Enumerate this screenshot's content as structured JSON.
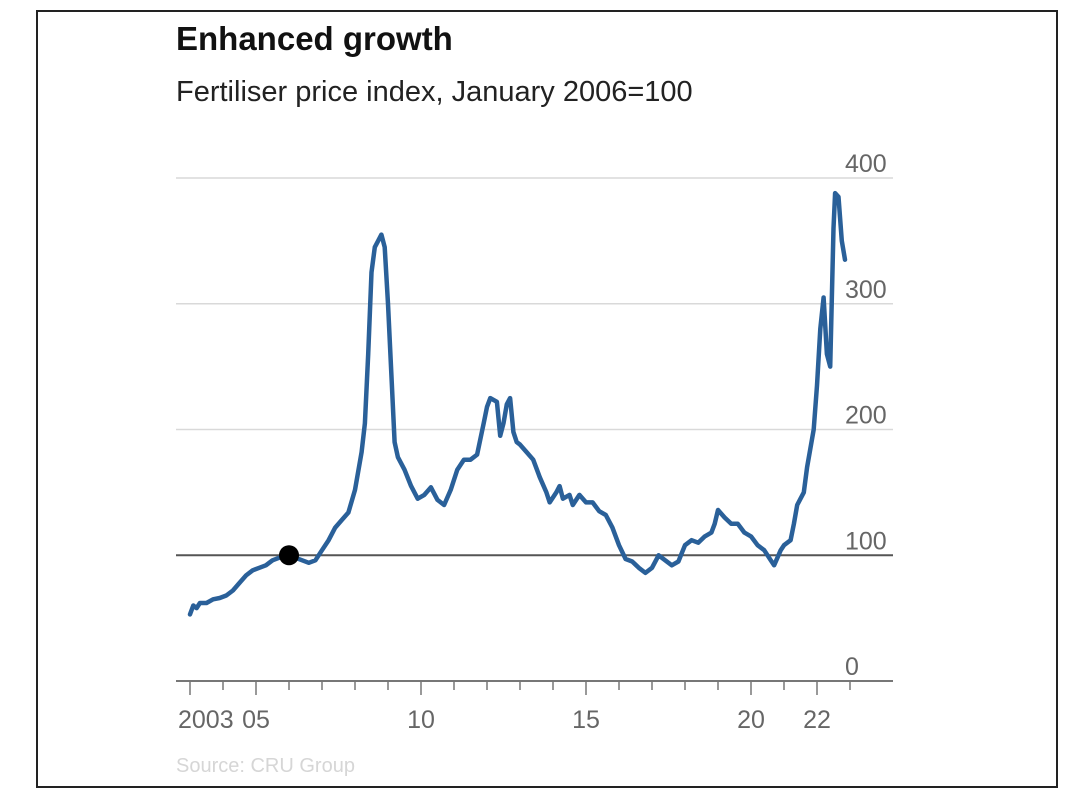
{
  "chart_data": {
    "type": "line",
    "title": "Enhanced growth",
    "subtitle": "Fertiliser price index,  January 2006=100",
    "source": "Source: CRU Group",
    "ylim": [
      0,
      400
    ],
    "y_ticks": [
      0,
      100,
      200,
      300,
      400
    ],
    "y_tick_labels": [
      "0",
      "100",
      "200",
      "300",
      "400"
    ],
    "y_axis_side": "right",
    "x_range": [
      2003,
      2023
    ],
    "x_ticks_major": [
      2003,
      2005,
      2010,
      2015,
      2020,
      2022
    ],
    "x_tick_labels": [
      "2003",
      "05",
      "10",
      "15",
      "20",
      "22"
    ],
    "x_ticks_minor": [
      2004,
      2006,
      2007,
      2008,
      2009,
      2011,
      2012,
      2013,
      2014,
      2016,
      2017,
      2018,
      2019,
      2021,
      2023
    ],
    "grid": true,
    "reference_line": {
      "y": 100
    },
    "marker": {
      "x": 2006.0,
      "y": 100
    },
    "colors": {
      "line": "#2a6099",
      "grid": "#d9d9d9",
      "reference": "#555555",
      "axis": "#777777",
      "marker": "#000000"
    },
    "series": [
      {
        "points": [
          [
            2003.0,
            53
          ],
          [
            2003.1,
            60
          ],
          [
            2003.2,
            58
          ],
          [
            2003.3,
            62
          ],
          [
            2003.5,
            62
          ],
          [
            2003.7,
            65
          ],
          [
            2003.9,
            66
          ],
          [
            2004.1,
            68
          ],
          [
            2004.3,
            72
          ],
          [
            2004.5,
            78
          ],
          [
            2004.7,
            84
          ],
          [
            2004.9,
            88
          ],
          [
            2005.1,
            90
          ],
          [
            2005.3,
            92
          ],
          [
            2005.5,
            96
          ],
          [
            2005.7,
            98
          ],
          [
            2005.9,
            100
          ],
          [
            2006.0,
            100
          ],
          [
            2006.2,
            98
          ],
          [
            2006.4,
            96
          ],
          [
            2006.6,
            94
          ],
          [
            2006.8,
            96
          ],
          [
            2007.0,
            104
          ],
          [
            2007.2,
            112
          ],
          [
            2007.4,
            122
          ],
          [
            2007.6,
            128
          ],
          [
            2007.8,
            134
          ],
          [
            2008.0,
            152
          ],
          [
            2008.2,
            182
          ],
          [
            2008.3,
            205
          ],
          [
            2008.4,
            260
          ],
          [
            2008.5,
            325
          ],
          [
            2008.6,
            345
          ],
          [
            2008.7,
            350
          ],
          [
            2008.8,
            355
          ],
          [
            2008.9,
            345
          ],
          [
            2009.0,
            300
          ],
          [
            2009.1,
            245
          ],
          [
            2009.2,
            190
          ],
          [
            2009.3,
            178
          ],
          [
            2009.5,
            168
          ],
          [
            2009.7,
            155
          ],
          [
            2009.9,
            145
          ],
          [
            2010.1,
            148
          ],
          [
            2010.3,
            154
          ],
          [
            2010.5,
            144
          ],
          [
            2010.7,
            140
          ],
          [
            2010.9,
            152
          ],
          [
            2011.1,
            168
          ],
          [
            2011.3,
            176
          ],
          [
            2011.5,
            176
          ],
          [
            2011.7,
            180
          ],
          [
            2011.9,
            205
          ],
          [
            2012.0,
            218
          ],
          [
            2012.1,
            225
          ],
          [
            2012.3,
            222
          ],
          [
            2012.4,
            195
          ],
          [
            2012.5,
            205
          ],
          [
            2012.6,
            220
          ],
          [
            2012.7,
            225
          ],
          [
            2012.8,
            198
          ],
          [
            2012.9,
            190
          ],
          [
            2013.0,
            188
          ],
          [
            2013.2,
            182
          ],
          [
            2013.4,
            176
          ],
          [
            2013.6,
            162
          ],
          [
            2013.8,
            150
          ],
          [
            2013.9,
            142
          ],
          [
            2014.1,
            150
          ],
          [
            2014.2,
            155
          ],
          [
            2014.3,
            145
          ],
          [
            2014.5,
            148
          ],
          [
            2014.6,
            140
          ],
          [
            2014.8,
            148
          ],
          [
            2015.0,
            142
          ],
          [
            2015.2,
            142
          ],
          [
            2015.4,
            135
          ],
          [
            2015.6,
            132
          ],
          [
            2015.8,
            122
          ],
          [
            2016.0,
            108
          ],
          [
            2016.2,
            97
          ],
          [
            2016.4,
            95
          ],
          [
            2016.6,
            90
          ],
          [
            2016.8,
            86
          ],
          [
            2017.0,
            90
          ],
          [
            2017.2,
            100
          ],
          [
            2017.4,
            96
          ],
          [
            2017.6,
            92
          ],
          [
            2017.8,
            95
          ],
          [
            2018.0,
            108
          ],
          [
            2018.2,
            112
          ],
          [
            2018.4,
            110
          ],
          [
            2018.6,
            115
          ],
          [
            2018.8,
            118
          ],
          [
            2018.9,
            125
          ],
          [
            2019.0,
            136
          ],
          [
            2019.2,
            130
          ],
          [
            2019.4,
            125
          ],
          [
            2019.6,
            125
          ],
          [
            2019.8,
            118
          ],
          [
            2020.0,
            115
          ],
          [
            2020.2,
            108
          ],
          [
            2020.4,
            104
          ],
          [
            2020.6,
            96
          ],
          [
            2020.7,
            92
          ],
          [
            2020.8,
            98
          ],
          [
            2020.9,
            104
          ],
          [
            2021.0,
            108
          ],
          [
            2021.2,
            112
          ],
          [
            2021.3,
            125
          ],
          [
            2021.4,
            140
          ],
          [
            2021.5,
            145
          ],
          [
            2021.6,
            150
          ],
          [
            2021.7,
            170
          ],
          [
            2021.8,
            185
          ],
          [
            2021.9,
            200
          ],
          [
            2022.0,
            235
          ],
          [
            2022.1,
            280
          ],
          [
            2022.2,
            305
          ],
          [
            2022.3,
            260
          ],
          [
            2022.4,
            250
          ],
          [
            2022.5,
            360
          ],
          [
            2022.55,
            388
          ],
          [
            2022.65,
            385
          ],
          [
            2022.75,
            350
          ],
          [
            2022.85,
            335
          ]
        ]
      }
    ]
  }
}
